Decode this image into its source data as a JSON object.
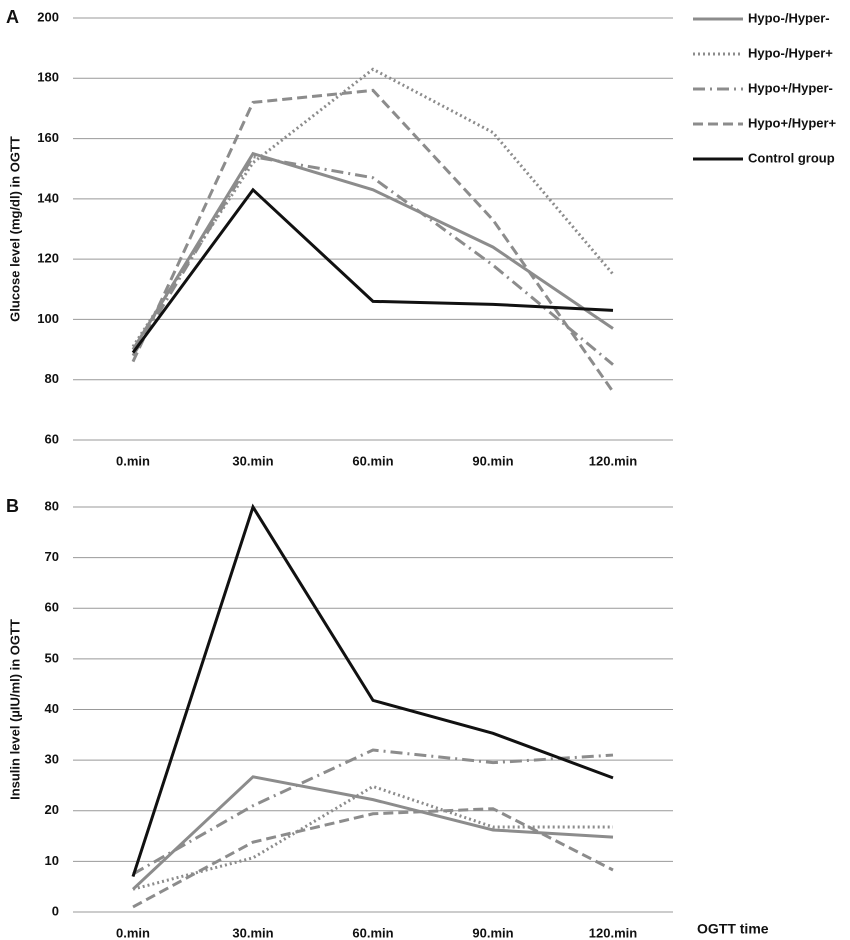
{
  "chart_data": [
    {
      "type": "line",
      "panel": "A",
      "y_label": "Glucose level (mg/dl) in OGTT",
      "categories": [
        "0.min",
        "30.min",
        "60.min",
        "90.min",
        "120.min"
      ],
      "ylim": [
        60,
        200
      ],
      "yticks": [
        60,
        80,
        100,
        120,
        140,
        160,
        180,
        200
      ],
      "grid": true,
      "legend": "right",
      "series": [
        {
          "name": "Hypo-/Hyper-",
          "color": "#8c8c8c",
          "line_style": "solid",
          "values": [
            90,
            155,
            143,
            124,
            97
          ]
        },
        {
          "name": "Hypo-/Hyper+",
          "color": "#8c8c8c",
          "line_style": "dotted",
          "values": [
            91,
            152,
            183,
            162,
            115
          ]
        },
        {
          "name": "Hypo+/Hyper-",
          "color": "#8c8c8c",
          "line_style": "dashdot",
          "values": [
            88,
            154,
            147,
            118,
            85
          ]
        },
        {
          "name": "Hypo+/Hyper+",
          "color": "#8c8c8c",
          "line_style": "dashed",
          "values": [
            86,
            172,
            176,
            133,
            76
          ]
        },
        {
          "name": "Control group",
          "color": "#111111",
          "line_style": "solid",
          "values": [
            89,
            143,
            106,
            105,
            103
          ]
        }
      ]
    },
    {
      "type": "line",
      "panel": "B",
      "y_label": "Insulin level (µIU/ml) in OGTT",
      "x_label": "OGTT time",
      "categories": [
        "0.min",
        "30.min",
        "60.min",
        "90.min",
        "120.min"
      ],
      "ylim": [
        0,
        80
      ],
      "yticks": [
        0,
        10,
        20,
        30,
        40,
        50,
        60,
        70,
        80
      ],
      "grid": true,
      "series": [
        {
          "color": "#8c8c8c",
          "line_style": "solid",
          "values": [
            4.5,
            26.7,
            22.2,
            16.2,
            14.8
          ]
        },
        {
          "color": "#8c8c8c",
          "line_style": "dotted",
          "values": [
            4.5,
            10.7,
            24.8,
            16.8,
            16.8
          ]
        },
        {
          "color": "#8c8c8c",
          "line_style": "dashdot",
          "values": [
            7.5,
            21,
            32,
            29.5,
            31
          ]
        },
        {
          "color": "#8c8c8c",
          "line_style": "dashed",
          "values": [
            1,
            13.8,
            19.4,
            20.4,
            8.3
          ]
        },
        {
          "color": "#111111",
          "line_style": "solid",
          "values": [
            7,
            80,
            41.8,
            35.3,
            26.5
          ]
        }
      ]
    }
  ]
}
